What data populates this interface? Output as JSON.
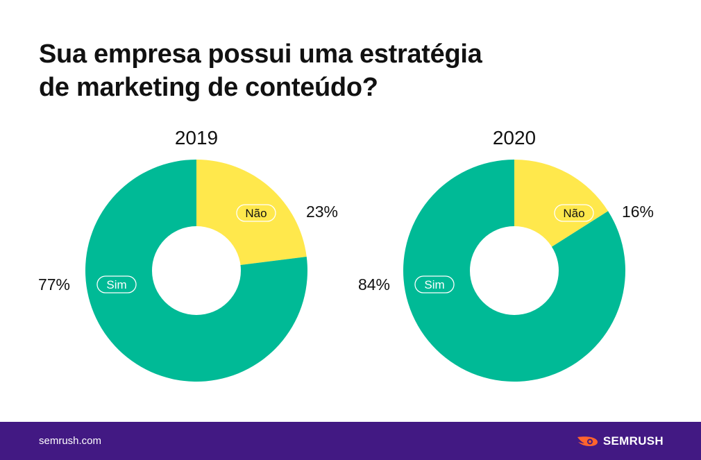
{
  "title": {
    "line1": "Sua empresa possui uma estratégia",
    "line2": "de marketing de conteúdo?"
  },
  "colors": {
    "sim": "#00BA96",
    "nao": "#FFE84C",
    "footer": "#421983"
  },
  "chart_data": [
    {
      "type": "pie",
      "title": "2019",
      "categories": [
        "Sim",
        "Não"
      ],
      "values": [
        77,
        23
      ],
      "value_labels": [
        "77%",
        "23%"
      ]
    },
    {
      "type": "pie",
      "title": "2020",
      "categories": [
        "Sim",
        "Não"
      ],
      "values": [
        84,
        16
      ],
      "value_labels": [
        "84%",
        "16%"
      ]
    }
  ],
  "footer": {
    "url": "semrush.com",
    "brand": "SEMRUSH",
    "logo_icon": "semrush-fire-icon"
  }
}
